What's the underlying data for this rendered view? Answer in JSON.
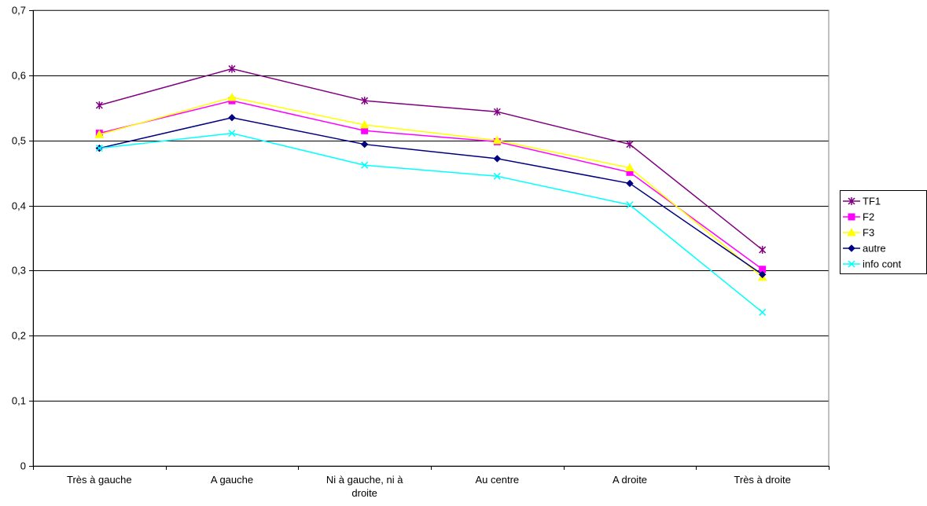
{
  "chart_data": {
    "type": "line",
    "title": "",
    "xlabel": "",
    "ylabel": "",
    "categories": [
      "Très à gauche",
      "A gauche",
      "Ni à gauche, ni à droite",
      "Au centre",
      "A droite",
      "Très à droite"
    ],
    "ylim": [
      0,
      0.7
    ],
    "yticks": [
      "0",
      "0,1",
      "0,2",
      "0,3",
      "0,4",
      "0,5",
      "0,6",
      "0,7"
    ],
    "grid": true,
    "legend_position": "right",
    "series": [
      {
        "name": "TF1",
        "color": "#800080",
        "marker": "star",
        "values": [
          0.554,
          0.61,
          0.561,
          0.544,
          0.494,
          0.332
        ]
      },
      {
        "name": "F2",
        "color": "#FF00FF",
        "marker": "square",
        "values": [
          0.511,
          0.561,
          0.515,
          0.498,
          0.451,
          0.302
        ]
      },
      {
        "name": "F3",
        "color": "#FFFF00",
        "marker": "triangle",
        "values": [
          0.509,
          0.566,
          0.524,
          0.5,
          0.458,
          0.29
        ]
      },
      {
        "name": "autre",
        "color": "#000080",
        "marker": "diamond",
        "values": [
          0.488,
          0.535,
          0.494,
          0.472,
          0.434,
          0.294
        ]
      },
      {
        "name": "info cont",
        "color": "#00FFFF",
        "marker": "x",
        "values": [
          0.488,
          0.511,
          0.462,
          0.445,
          0.401,
          0.236
        ]
      }
    ]
  }
}
